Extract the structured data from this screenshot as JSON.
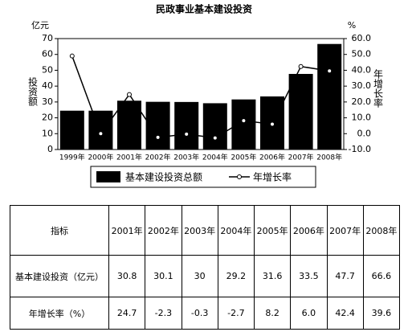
{
  "chart_data": {
    "type": "bar",
    "title": "民政事业基本建设投资",
    "y_unit": "亿元",
    "y2_unit": "%",
    "ylabel": "投资额",
    "y2label": "年增长率",
    "categories": [
      "1999年",
      "2000年",
      "2001年",
      "2002年",
      "2003年",
      "2004年",
      "2005年",
      "2006年",
      "2007年",
      "2008年"
    ],
    "series": [
      {
        "name": "基本建设投资总额",
        "type": "bar",
        "color": "#000000",
        "values": [
          24.5,
          24.5,
          30.8,
          30.1,
          30,
          29.2,
          31.6,
          33.5,
          47.7,
          66.6
        ]
      },
      {
        "name": "年增长率",
        "type": "line",
        "axis": "y2",
        "color": "#000000",
        "values": [
          49,
          0,
          24.7,
          -2.3,
          -0.3,
          -2.7,
          8.2,
          6.0,
          42.4,
          39.6
        ]
      }
    ],
    "ylim": [
      0,
      70
    ],
    "yticks": [
      0,
      10,
      20,
      30,
      40,
      50,
      60,
      70
    ],
    "y2lim": [
      -10,
      60
    ],
    "y2ticks": [
      {
        "value": -10,
        "label": "-10.0"
      },
      {
        "value": 0,
        "label": "0.0"
      },
      {
        "value": 10,
        "label": "10.0"
      },
      {
        "value": 20,
        "label": "20.0"
      },
      {
        "value": 30,
        "label": "30.0"
      },
      {
        "value": 40,
        "label": "40.0"
      },
      {
        "value": 50,
        "label": "50.0"
      },
      {
        "value": 60,
        "label": "60.0"
      }
    ],
    "grid": false
  },
  "table": {
    "header": [
      "指标",
      "2001年",
      "2002年",
      "2003年",
      "2004年",
      "2005年",
      "2006年",
      "2007年",
      "2008年"
    ],
    "rows": [
      [
        "基本建设投资（亿元）",
        "30.8",
        "30.1",
        "30",
        "29.2",
        "31.6",
        "33.5",
        "47.7",
        "66.6"
      ],
      [
        "年增长率（%）",
        "24.7",
        "-2.3",
        "-0.3",
        "-2.7",
        "8.2",
        "6.0",
        "42.4",
        "39.6"
      ]
    ]
  }
}
